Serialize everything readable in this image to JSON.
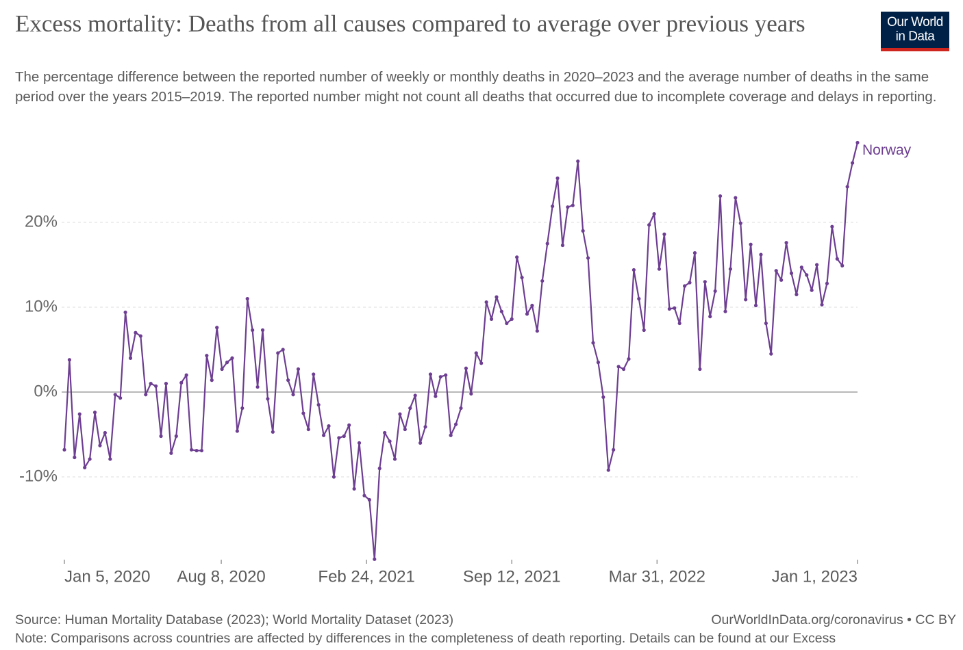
{
  "logo": [
    "Our World",
    "in Data"
  ],
  "chart_data": {
    "type": "line",
    "title": "Excess mortality: Deaths from all causes compared to average over previous years",
    "subtitle": "The percentage difference between the reported number of weekly or monthly deaths in 2020–2023 and the average number of deaths in the same period over the years 2015–2019. The reported number might not count all deaths that occurred due to incomplete coverage and delays in reporting.",
    "source": "Source: Human Mortality Database (2023); World Mortality Dataset (2023)",
    "license": "OurWorldInData.org/coronavirus • CC BY",
    "note": "Note: Comparisons across countries are affected by differences in the completeness of death reporting. Details can be found at our Excess",
    "x": [
      "2020-01-05",
      "2020-01-12",
      "2020-01-19",
      "2020-01-26",
      "2020-02-02",
      "2020-02-09",
      "2020-02-16",
      "2020-02-23",
      "2020-03-01",
      "2020-03-08",
      "2020-03-15",
      "2020-03-22",
      "2020-03-29",
      "2020-04-05",
      "2020-04-12",
      "2020-04-19",
      "2020-04-26",
      "2020-05-03",
      "2020-05-10",
      "2020-05-17",
      "2020-05-24",
      "2020-05-31",
      "2020-06-07",
      "2020-06-14",
      "2020-06-21",
      "2020-06-28",
      "2020-07-05",
      "2020-07-12",
      "2020-07-19",
      "2020-07-26",
      "2020-08-02",
      "2020-08-09",
      "2020-08-16",
      "2020-08-23",
      "2020-08-30",
      "2020-09-06",
      "2020-09-13",
      "2020-09-20",
      "2020-09-27",
      "2020-10-04",
      "2020-10-11",
      "2020-10-18",
      "2020-10-25",
      "2020-11-01",
      "2020-11-08",
      "2020-11-15",
      "2020-11-22",
      "2020-11-29",
      "2020-12-06",
      "2020-12-13",
      "2020-12-20",
      "2020-12-27",
      "2021-01-03",
      "2021-01-10",
      "2021-01-17",
      "2021-01-24",
      "2021-01-31",
      "2021-02-07",
      "2021-02-14",
      "2021-02-21",
      "2021-02-28",
      "2021-03-07",
      "2021-03-14",
      "2021-03-21",
      "2021-03-28",
      "2021-04-04",
      "2021-04-11",
      "2021-04-18",
      "2021-04-25",
      "2021-05-02",
      "2021-05-09",
      "2021-05-16",
      "2021-05-23",
      "2021-05-30",
      "2021-06-06",
      "2021-06-13",
      "2021-06-20",
      "2021-06-27",
      "2021-07-04",
      "2021-07-11",
      "2021-07-18",
      "2021-07-25",
      "2021-08-01",
      "2021-08-08",
      "2021-08-15",
      "2021-08-22",
      "2021-08-29",
      "2021-09-05",
      "2021-09-12",
      "2021-09-19",
      "2021-09-26",
      "2021-10-03",
      "2021-10-10",
      "2021-10-17",
      "2021-10-24",
      "2021-10-31",
      "2021-11-07",
      "2021-11-14",
      "2021-11-21",
      "2021-11-28",
      "2021-12-05",
      "2021-12-12",
      "2021-12-19",
      "2021-12-26",
      "2022-01-02",
      "2022-01-09",
      "2022-01-16",
      "2022-01-23",
      "2022-01-30",
      "2022-02-06",
      "2022-02-13",
      "2022-02-20",
      "2022-02-27",
      "2022-03-06",
      "2022-03-13",
      "2022-03-20",
      "2022-03-27",
      "2022-04-03",
      "2022-04-10",
      "2022-04-17",
      "2022-04-24",
      "2022-05-01",
      "2022-05-08",
      "2022-05-15",
      "2022-05-22",
      "2022-05-29",
      "2022-06-05",
      "2022-06-12",
      "2022-06-19",
      "2022-06-26",
      "2022-07-03",
      "2022-07-10",
      "2022-07-17",
      "2022-07-24",
      "2022-07-31",
      "2022-08-07",
      "2022-08-14",
      "2022-08-21",
      "2022-08-28",
      "2022-09-04",
      "2022-09-11",
      "2022-09-18",
      "2022-09-25",
      "2022-10-02",
      "2022-10-09",
      "2022-10-16",
      "2022-10-23",
      "2022-10-30",
      "2022-11-06",
      "2022-11-13",
      "2022-11-20",
      "2022-11-27",
      "2022-12-04",
      "2022-12-11",
      "2022-12-18",
      "2022-12-25",
      "2023-01-01"
    ],
    "series": [
      {
        "name": "Norway",
        "color": "#6d3e91",
        "values": [
          -6.8,
          3.8,
          -7.7,
          -2.6,
          -8.9,
          -7.9,
          -2.4,
          -6.3,
          -4.8,
          -7.9,
          -0.3,
          -0.7,
          9.4,
          4.0,
          7.0,
          6.6,
          -0.3,
          1.0,
          0.7,
          -5.2,
          1.0,
          -7.2,
          -5.2,
          1.1,
          2.0,
          -6.8,
          -6.9,
          -6.9,
          4.3,
          1.4,
          7.6,
          2.7,
          3.5,
          4.0,
          -4.6,
          -1.9,
          11.0,
          7.3,
          0.6,
          7.3,
          -0.8,
          -4.7,
          4.6,
          5.0,
          1.4,
          -0.3,
          2.7,
          -2.5,
          -4.4,
          2.1,
          -1.5,
          -5.1,
          -4.0,
          -10.0,
          -5.4,
          -5.2,
          -3.9,
          -11.4,
          -6.0,
          -12.2,
          -12.7,
          -19.7,
          -9.0,
          -4.8,
          -5.8,
          -7.9,
          -2.6,
          -4.4,
          -1.9,
          -0.4,
          -6.0,
          -4.1,
          2.1,
          -0.5,
          1.8,
          2.0,
          -5.1,
          -3.8,
          -1.9,
          2.8,
          -0.2,
          4.6,
          3.4,
          10.6,
          8.6,
          11.2,
          9.5,
          8.1,
          8.6,
          15.9,
          13.5,
          9.2,
          10.2,
          7.2,
          13.1,
          17.5,
          21.9,
          25.2,
          17.3,
          21.8,
          22.0,
          27.2,
          19.0,
          15.8,
          5.8,
          3.5,
          -0.6,
          -9.2,
          -6.8,
          3.0,
          2.7,
          3.9,
          14.4,
          11.0,
          7.3,
          19.7,
          21.0,
          14.5,
          18.6,
          9.8,
          9.9,
          8.1,
          12.5,
          12.9,
          16.4,
          2.7,
          13.0,
          8.9,
          11.9,
          23.1,
          9.5,
          14.5,
          22.9,
          19.9,
          10.9,
          17.4,
          10.2,
          16.2,
          8.1,
          4.5,
          14.3,
          13.2,
          17.6,
          14.0,
          11.5,
          14.7,
          13.8,
          12.0,
          15.0,
          10.3,
          12.8,
          19.5,
          15.7,
          14.9,
          24.2,
          27.0,
          29.4
        ]
      }
    ],
    "xlim": [
      "2020-01-05",
      "2023-01-01"
    ],
    "xticks": [
      {
        "value": "2020-01-05",
        "label": "Jan 5, 2020"
      },
      {
        "value": "2020-08-08",
        "label": "Aug 8, 2020"
      },
      {
        "value": "2021-02-24",
        "label": "Feb 24, 2021"
      },
      {
        "value": "2021-09-12",
        "label": "Sep 12, 2021"
      },
      {
        "value": "2022-03-31",
        "label": "Mar 31, 2022"
      },
      {
        "value": "2023-01-01",
        "label": "Jan 1, 2023"
      }
    ],
    "ylim": [
      -20,
      30
    ],
    "yticks": [
      {
        "value": -10,
        "label": "-10%"
      },
      {
        "value": 0,
        "label": "0%"
      },
      {
        "value": 10,
        "label": "10%"
      },
      {
        "value": 20,
        "label": "20%"
      }
    ],
    "grid": true
  }
}
